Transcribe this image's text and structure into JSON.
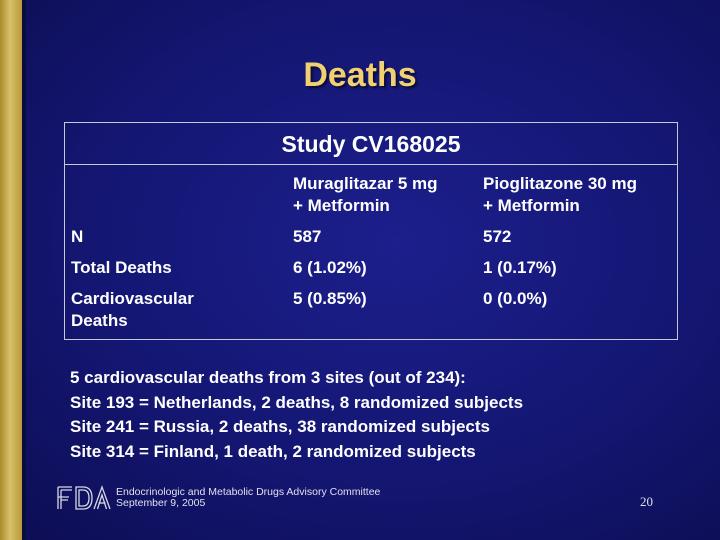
{
  "title": "Deaths",
  "table": {
    "caption": "Study CV168025",
    "columns": [
      {
        "line1": "Muraglitazar 5 mg",
        "line2": "+ Metformin"
      },
      {
        "line1": "Pioglitazone 30 mg",
        "line2": "+ Metformin"
      }
    ],
    "rows": [
      {
        "label": "N",
        "label2": "",
        "values": [
          "587",
          "572"
        ]
      },
      {
        "label": "Total Deaths",
        "label2": "",
        "values": [
          "6 (1.02%)",
          "1 (0.17%)"
        ]
      },
      {
        "label": "Cardiovascular",
        "label2": "Deaths",
        "values": [
          "5 (0.85%)",
          "0 (0.0%)"
        ]
      }
    ]
  },
  "notes": [
    "5 cardiovascular deaths from 3 sites (out of 234):",
    "Site 193 = Netherlands, 2 deaths, 8 randomized subjects",
    "Site 241 = Russia, 2 deaths, 38 randomized subjects",
    "Site 314 = Finland, 1 death, 2 randomized subjects"
  ],
  "footer": {
    "logo_text": "FDA",
    "committee": "Endocrinologic and Metabolic Drugs Advisory Committee",
    "date": "September 9, 2005",
    "slide_number": "20"
  },
  "colors": {
    "background": "#141672",
    "title": "#f0d070",
    "text": "#ffffff",
    "accent_bar": "#c8ad50"
  }
}
